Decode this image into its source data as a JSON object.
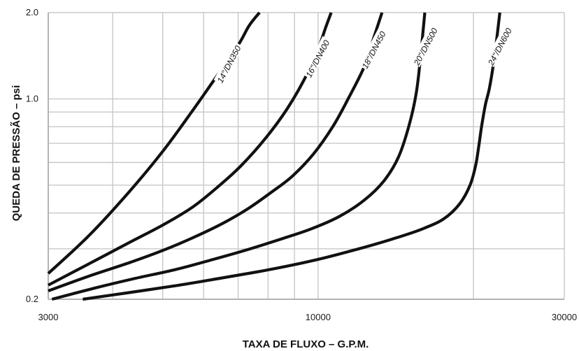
{
  "chart_data": {
    "type": "line",
    "title": "",
    "xlabel": "TAXA DE FLUXO – G.P.M.",
    "ylabel": "QUEDA DE PRESSÃO – psi",
    "x_scale": "log",
    "y_scale": "log",
    "xlim": [
      3000,
      30000
    ],
    "ylim": [
      0.2,
      2.0
    ],
    "x_ticks": [
      3000,
      10000,
      30000
    ],
    "x_tick_labels": [
      "3000",
      "10000",
      "30000"
    ],
    "y_ticks": [
      0.2,
      1.0,
      2.0
    ],
    "y_tick_labels": [
      "0.2",
      "1.0",
      "2.0"
    ],
    "x_gridlines": [
      3000,
      4000,
      5000,
      6000,
      7000,
      8000,
      9000,
      10000,
      20000,
      30000
    ],
    "y_gridlines": [
      0.2,
      0.3,
      0.4,
      0.5,
      0.6,
      0.7,
      0.8,
      0.9,
      1.0,
      2.0
    ],
    "grid": true,
    "legend": "none",
    "series": [
      {
        "name": "14\"/DN350",
        "x": [
          3000,
          3600,
          4300,
          5000,
          5700,
          6300,
          7000,
          7350,
          7700
        ],
        "y": [
          0.246,
          0.334,
          0.473,
          0.656,
          0.905,
          1.17,
          1.54,
          1.8,
          2.0
        ]
      },
      {
        "name": "16\"/DN400",
        "x": [
          3000,
          3600,
          4300,
          5000,
          5700,
          6400,
          7100,
          7900,
          8700,
          9450,
          10050,
          10350,
          10600
        ],
        "y": [
          0.224,
          0.266,
          0.315,
          0.363,
          0.418,
          0.494,
          0.586,
          0.727,
          0.92,
          1.19,
          1.53,
          1.78,
          2.0
        ]
      },
      {
        "name": "18\"/DN450",
        "x": [
          3000,
          3600,
          4300,
          5000,
          5700,
          6500,
          7300,
          8100,
          8900,
          9800,
          10700,
          11500,
          12300,
          12800,
          13300
        ],
        "y": [
          0.214,
          0.241,
          0.268,
          0.296,
          0.327,
          0.366,
          0.413,
          0.471,
          0.536,
          0.643,
          0.805,
          1.02,
          1.3,
          1.62,
          2.0
        ]
      },
      {
        "name": "20\"/DN500",
        "x": [
          3050,
          3700,
          4400,
          5300,
          6200,
          7300,
          8500,
          9700,
          11000,
          12300,
          13400,
          14300,
          15000,
          15500,
          15800,
          16100
        ],
        "y": [
          0.2,
          0.219,
          0.236,
          0.254,
          0.274,
          0.298,
          0.325,
          0.352,
          0.389,
          0.444,
          0.516,
          0.624,
          0.805,
          1.05,
          1.41,
          2.0
        ]
      },
      {
        "name": "24\"/DN600",
        "x": [
          3500,
          4300,
          5300,
          6400,
          7600,
          8900,
          10300,
          12000,
          13900,
          15800,
          17500,
          18800,
          19700,
          20200,
          20500,
          20750,
          21100,
          21500,
          22000,
          22500
        ],
        "y": [
          0.2,
          0.211,
          0.223,
          0.236,
          0.249,
          0.263,
          0.279,
          0.3,
          0.324,
          0.35,
          0.381,
          0.43,
          0.5,
          0.586,
          0.692,
          0.805,
          0.956,
          1.1,
          1.43,
          2.0
        ]
      }
    ],
    "series_labels": [
      "14\"/DN350",
      "16\"/DN400",
      "18\"/DN450",
      "20\"/DN500",
      "24\"/DN600"
    ],
    "colors": {
      "line": "#111111",
      "grid": "#c8c8c8",
      "axis": "#b4b4b4"
    }
  }
}
